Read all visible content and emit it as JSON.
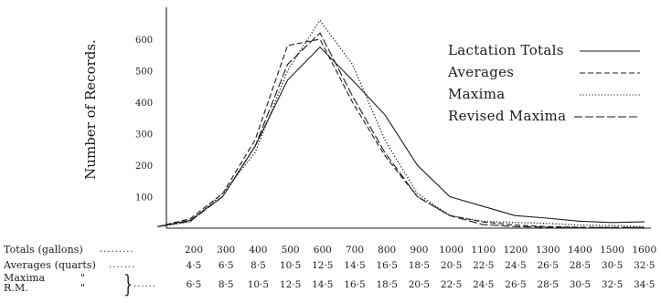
{
  "chart_data": {
    "type": "line",
    "ylabel": "Number of Records.",
    "ylim": [
      0,
      700
    ],
    "yticks": [
      100,
      200,
      300,
      400,
      500,
      600
    ],
    "categories_totals": [
      "200",
      "300",
      "400",
      "500",
      "600",
      "700",
      "800",
      "900",
      "1000",
      "1100",
      "1200",
      "1300",
      "1400",
      "1500",
      "1600"
    ],
    "categories_averages": [
      "4·5",
      "6·5",
      "8·5",
      "10·5",
      "12·5",
      "14·5",
      "16·5",
      "18·5",
      "20·5",
      "22·5",
      "24·5",
      "26·5",
      "28·5",
      "30·5",
      "32·5"
    ],
    "categories_maxima": [
      "6·5",
      "8·5",
      "10·5",
      "12·5",
      "14·5",
      "16·5",
      "18·5",
      "20·5",
      "22·5",
      "24·5",
      "26·5",
      "28·5",
      "30·5",
      "32·5",
      "34·5"
    ],
    "legend_position": "right",
    "series": [
      {
        "name": "Lactation Totals",
        "style": "solid",
        "points": [
          [
            100,
            5
          ],
          [
            200,
            25
          ],
          [
            300,
            100
          ],
          [
            400,
            260
          ],
          [
            500,
            470
          ],
          [
            600,
            575
          ],
          [
            700,
            470
          ],
          [
            800,
            360
          ],
          [
            900,
            200
          ],
          [
            1000,
            100
          ],
          [
            1100,
            70
          ],
          [
            1200,
            40
          ],
          [
            1300,
            32
          ],
          [
            1400,
            22
          ],
          [
            1500,
            18
          ],
          [
            1600,
            20
          ]
        ]
      },
      {
        "name": "Averages",
        "style": "dashed",
        "points": [
          [
            100,
            5
          ],
          [
            200,
            30
          ],
          [
            300,
            110
          ],
          [
            400,
            280
          ],
          [
            500,
            580
          ],
          [
            600,
            600
          ],
          [
            700,
            400
          ],
          [
            800,
            230
          ],
          [
            900,
            100
          ],
          [
            1000,
            40
          ],
          [
            1100,
            20
          ],
          [
            1200,
            10
          ],
          [
            1300,
            5
          ],
          [
            1400,
            3
          ],
          [
            1500,
            2
          ],
          [
            1600,
            2
          ]
        ]
      },
      {
        "name": "Maxima",
        "style": "dotted",
        "points": [
          [
            100,
            5
          ],
          [
            200,
            20
          ],
          [
            300,
            110
          ],
          [
            400,
            240
          ],
          [
            500,
            500
          ],
          [
            600,
            660
          ],
          [
            700,
            520
          ],
          [
            800,
            280
          ],
          [
            900,
            110
          ],
          [
            1000,
            40
          ],
          [
            1100,
            22
          ],
          [
            1200,
            18
          ],
          [
            1300,
            15
          ],
          [
            1400,
            10
          ],
          [
            1500,
            8
          ],
          [
            1600,
            5
          ]
        ]
      },
      {
        "name": "Revised Maxima",
        "style": "longdash",
        "points": [
          [
            100,
            5
          ],
          [
            200,
            22
          ],
          [
            300,
            100
          ],
          [
            400,
            260
          ],
          [
            500,
            520
          ],
          [
            600,
            620
          ],
          [
            700,
            420
          ],
          [
            800,
            240
          ],
          [
            900,
            100
          ],
          [
            1000,
            40
          ],
          [
            1100,
            12
          ],
          [
            1200,
            5
          ],
          [
            1300,
            3
          ],
          [
            1400,
            2
          ],
          [
            1500,
            2
          ],
          [
            1600,
            2
          ]
        ]
      }
    ]
  },
  "rows": {
    "totals_label": "Totals (gallons)",
    "averages_label": "Averages (quarts)",
    "maxima_label": "Maxima",
    "rm_label": "R.M.",
    "ditto_1": "\"",
    "ditto_2": "\""
  },
  "colors": {
    "ink": "#1b1b1b",
    "paper": "#ffffff"
  }
}
